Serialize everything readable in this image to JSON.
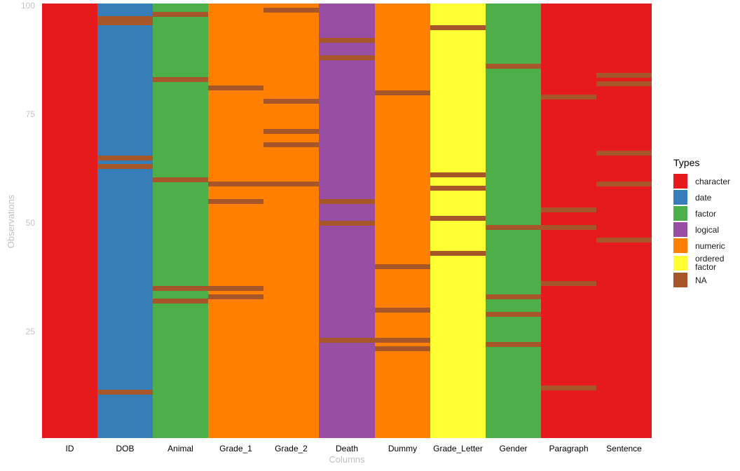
{
  "chart_data": {
    "type": "heatmap",
    "title": "",
    "xlabel": "Columns",
    "ylabel": "Observations",
    "legend_title": "Types",
    "legend_position": "right",
    "grid": false,
    "n_observations": 100,
    "y_ticks": [
      100,
      75,
      50,
      25
    ],
    "type_colors": {
      "character": "#E41A1C",
      "date": "#377EB8",
      "factor": "#4DAF4A",
      "logical": "#984EA3",
      "numeric": "#FF7F00",
      "ordered factor": "#FFFF33",
      "NA": "#A65628"
    },
    "types_legend": [
      {
        "label": "character",
        "color": "#E41A1C"
      },
      {
        "label": "date",
        "color": "#377EB8"
      },
      {
        "label": "factor",
        "color": "#4DAF4A"
      },
      {
        "label": "logical",
        "color": "#984EA3"
      },
      {
        "label": "numeric",
        "color": "#FF7F00"
      },
      {
        "label": "ordered factor",
        "color": "#FFFF33"
      },
      {
        "label": "NA",
        "color": "#A65628"
      }
    ],
    "columns": [
      {
        "name": "ID",
        "type": "character",
        "na_observations": []
      },
      {
        "name": "DOB",
        "type": "date",
        "na_observations": [
          97,
          96,
          65,
          63,
          11
        ]
      },
      {
        "name": "Animal",
        "type": "factor",
        "na_observations": [
          98,
          83,
          60,
          35,
          32
        ]
      },
      {
        "name": "Grade_1",
        "type": "numeric",
        "na_observations": [
          81,
          59,
          55,
          35,
          33
        ]
      },
      {
        "name": "Grade_2",
        "type": "numeric",
        "na_observations": [
          99,
          78,
          71,
          68,
          59
        ]
      },
      {
        "name": "Death",
        "type": "logical",
        "na_observations": [
          92,
          88,
          55,
          50,
          23
        ]
      },
      {
        "name": "Dummy",
        "type": "numeric",
        "na_observations": [
          80,
          40,
          30,
          23,
          21
        ]
      },
      {
        "name": "Grade_Letter",
        "type": "ordered factor",
        "na_observations": [
          95,
          61,
          58,
          51,
          43
        ]
      },
      {
        "name": "Gender",
        "type": "factor",
        "na_observations": [
          86,
          49,
          33,
          29,
          22
        ]
      },
      {
        "name": "Paragraph",
        "type": "character",
        "na_observations": [
          79,
          53,
          49,
          36,
          12
        ]
      },
      {
        "name": "Sentence",
        "type": "character",
        "na_observations": [
          84,
          82,
          66,
          59,
          46
        ]
      }
    ],
    "styles": {
      "background": "#FFFFFF",
      "axis_tick_color": "#C3C3C7",
      "axis_title_color": "#C0C0C4",
      "x_label_color": "#000000",
      "legend_title_color": "#000000",
      "legend_label_color": "#1A1A1A"
    }
  }
}
